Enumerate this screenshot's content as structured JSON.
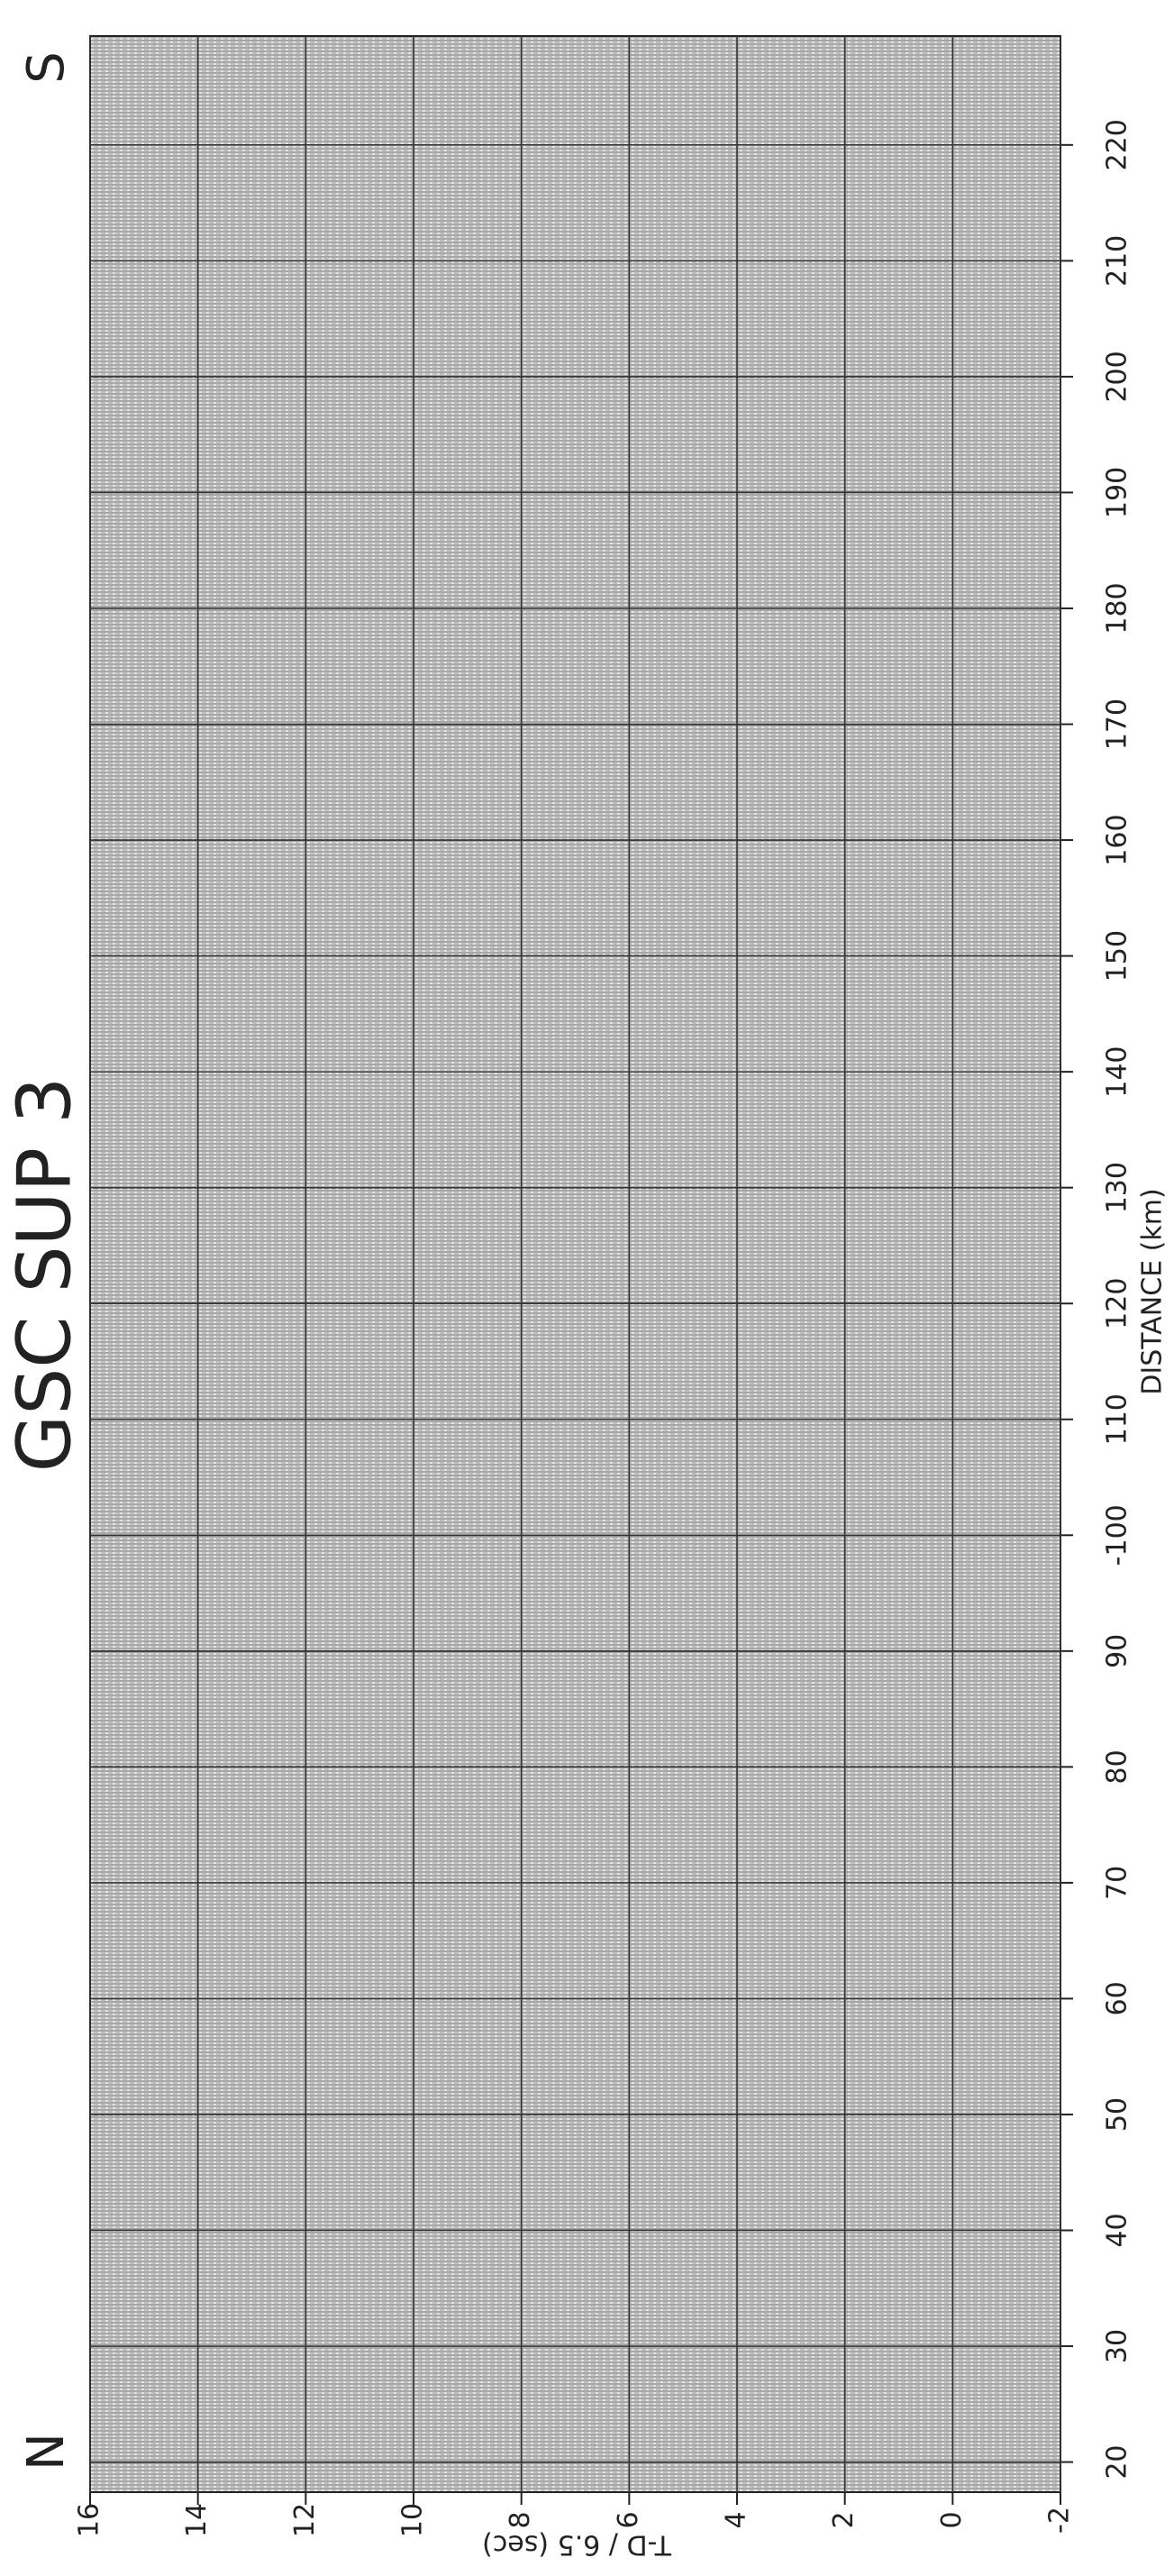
{
  "chart_data": {
    "type": "seismic-section",
    "title": "GSC SUP 3",
    "xlabel": "DISTANCE (km)",
    "ylabel": "T-D / 6.5 (sec)",
    "annotations": [
      "N",
      "S"
    ],
    "xlim": [
      17.4,
      229.4
    ],
    "xticks": [
      20,
      30,
      40,
      50,
      60,
      70,
      80,
      90,
      {
        "value": 100,
        "label": "-100"
      },
      110,
      120,
      130,
      140,
      150,
      160,
      170,
      180,
      190,
      200,
      210,
      220
    ],
    "ylim": [
      -2,
      16
    ],
    "yticks": [
      16,
      14,
      12,
      10,
      8,
      6,
      4,
      2,
      0,
      -2
    ],
    "grid": true
  }
}
